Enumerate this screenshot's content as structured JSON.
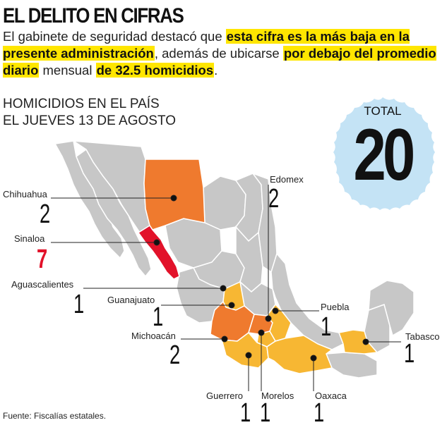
{
  "title": "EL DELITO EN CIFRAS",
  "intro": {
    "p1": "El gabinete de seguridad destacó que ",
    "h1": "esta cifra es la más baja en la presente administración",
    "p2": ", además de ubicarse ",
    "h2": "por debajo del promedio diario",
    "p3": " mensual ",
    "h3": "de 32.5 homicidios",
    "p4": "."
  },
  "subtitle": {
    "line1": "HOMICIDIOS EN EL PAÍS",
    "line2": "EL JUEVES 13 DE AGOSTO"
  },
  "total": {
    "label": "TOTAL",
    "value": "20"
  },
  "states": [
    {
      "name": "Chihuahua",
      "count": "2"
    },
    {
      "name": "Sinaloa",
      "count": "7"
    },
    {
      "name": "Aguascalientes",
      "count": "1"
    },
    {
      "name": "Guanajuato",
      "count": "1"
    },
    {
      "name": "Michoacán",
      "count": "2"
    },
    {
      "name": "Guerrero",
      "count": "1"
    },
    {
      "name": "Morelos",
      "count": "1"
    },
    {
      "name": "Oaxaca",
      "count": "1"
    },
    {
      "name": "Edomex",
      "count": "2"
    },
    {
      "name": "Puebla",
      "count": "1"
    },
    {
      "name": "Tabasco",
      "count": "1"
    }
  ],
  "colors": {
    "highlight": "#ffe600",
    "badge": "#c4e3f5",
    "map_gray": "#c7c7c7",
    "orange": "#ef7a2e",
    "yellow": "#f7b733",
    "red": "#e2122a"
  },
  "source": "Fuente: Fiscalías estatales."
}
